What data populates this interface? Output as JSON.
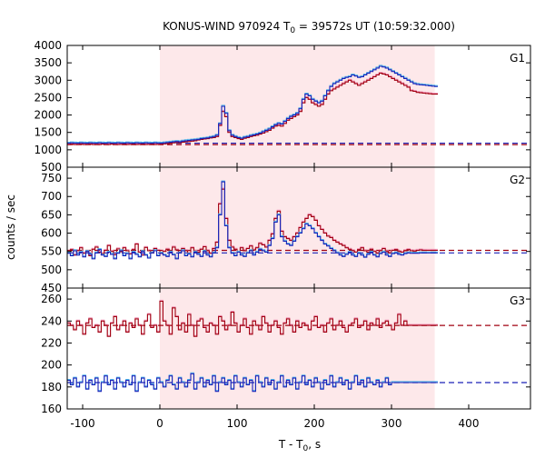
{
  "title": {
    "prefix": "KONUS-WIND 970924 T",
    "sub": "0",
    "suffix": " = 39572s UT (10:59:32.000)"
  },
  "colors": {
    "shade": "#fde8ea",
    "series_red": "#a00010",
    "series_blue": "#1a22b8",
    "series_pink": "#f08ab0",
    "series_cyan": "#40b0e8",
    "bg_red_dash": "#a00010",
    "bg_blue_dash": "#1a22b8"
  },
  "chart_data": {
    "type": "line",
    "title": "KONUS-WIND 970924 T0 = 39572s UT (10:59:32.000)",
    "xlabel": {
      "prefix": "T - T",
      "sub": "0",
      "suffix": ", s"
    },
    "ylabel": "counts / sec",
    "xlim": [
      -120,
      480
    ],
    "xticks": [
      -100,
      0,
      100,
      200,
      300,
      400
    ],
    "shaded_interval": [
      0,
      356
    ],
    "grid": false,
    "panels": [
      {
        "label": "G1",
        "ylim": [
          500,
          4000
        ],
        "yticks": [
          500,
          1000,
          1500,
          2000,
          2500,
          3000,
          3500,
          4000
        ],
        "background_levels": {
          "red": 1150,
          "blue": 1190
        },
        "series": [
          {
            "name": "",
            "color_key": "series_red",
            "step": 4,
            "x0": -120,
            "values": [
              1150,
              1160,
              1150,
              1155,
              1160,
              1150,
              1155,
              1160,
              1150,
              1155,
              1150,
              1160,
              1155,
              1150,
              1160,
              1155,
              1150,
              1155,
              1160,
              1150,
              1155,
              1160,
              1150,
              1155,
              1160,
              1150,
              1155,
              1160,
              1150,
              1155,
              1160,
              1170,
              1180,
              1190,
              1200,
              1210,
              1200,
              1220,
              1230,
              1240,
              1250,
              1260,
              1280,
              1300,
              1310,
              1320,
              1340,
              1350,
              1380,
              1700,
              2100,
              1950,
              1500,
              1380,
              1350,
              1320,
              1300,
              1330,
              1350,
              1380,
              1400,
              1420,
              1450,
              1480,
              1520,
              1560,
              1620,
              1680,
              1700,
              1680,
              1760,
              1850,
              1900,
              1950,
              2000,
              2100,
              2350,
              2500,
              2450,
              2350,
              2300,
              2250,
              2300,
              2450,
              2600,
              2700,
              2750,
              2800,
              2850,
              2900,
              2950,
              3000,
              2950,
              2900,
              2850,
              2900,
              2950,
              3000,
              3050,
              3100,
              3150,
              3200,
              3180,
              3150,
              3100,
              3050,
              3000,
              2950,
              2900,
              2850,
              2800,
              2700,
              2680,
              2650,
              2640,
              2630,
              2620,
              2610,
              2600,
              2600
            ]
          },
          {
            "name": "",
            "color_key": "series_blue",
            "step": 4,
            "x0": -120,
            "values": [
              1190,
              1200,
              1195,
              1190,
              1200,
              1195,
              1190,
              1200,
              1195,
              1190,
              1200,
              1195,
              1190,
              1200,
              1195,
              1190,
              1200,
              1195,
              1190,
              1200,
              1195,
              1190,
              1200,
              1195,
              1190,
              1200,
              1195,
              1190,
              1200,
              1195,
              1190,
              1200,
              1210,
              1220,
              1230,
              1240,
              1230,
              1250,
              1260,
              1270,
              1280,
              1290,
              1300,
              1320,
              1330,
              1340,
              1360,
              1380,
              1420,
              1750,
              2250,
              2050,
              1550,
              1420,
              1380,
              1350,
              1330,
              1360,
              1380,
              1410,
              1430,
              1450,
              1480,
              1520,
              1560,
              1600,
              1660,
              1720,
              1760,
              1740,
              1820,
              1900,
              1960,
              2000,
              2050,
              2180,
              2450,
              2600,
              2550,
              2450,
              2400,
              2350,
              2400,
              2550,
              2700,
              2820,
              2900,
              2950,
              3000,
              3050,
              3080,
              3100,
              3150,
              3120,
              3080,
              3100,
              3150,
              3200,
              3250,
              3300,
              3350,
              3400,
              3380,
              3350,
              3300,
              3250,
              3200,
              3150,
              3100,
              3050,
              3000,
              2950,
              2900,
              2880,
              2870,
              2860,
              2850,
              2840,
              2830,
              2820
            ]
          }
        ]
      },
      {
        "label": "G2",
        "ylim": [
          450,
          780
        ],
        "yticks": [
          450,
          500,
          550,
          600,
          650,
          700,
          750
        ],
        "background_levels": {
          "red": 553,
          "blue": 546
        },
        "series": [
          {
            "name": "",
            "color_key": "series_red",
            "step": 4,
            "x0": -120,
            "values": [
              548,
              555,
              540,
              552,
              560,
              545,
              550,
              538,
              556,
              562,
              548,
              544,
              553,
              566,
              550,
              541,
              557,
              549,
              560,
              552,
              543,
              555,
              570,
              548,
              540,
              561,
              552,
              546,
              558,
              553,
              545,
              550,
              556,
              548,
              562,
              554,
              547,
              558,
              552,
              545,
              560,
              550,
              548,
              556,
              563,
              552,
              545,
              558,
              575,
              680,
              720,
              640,
              580,
              562,
              556,
              548,
              560,
              552,
              558,
              565,
              554,
              560,
              572,
              568,
              562,
              580,
              598,
              640,
              660,
              605,
              590,
              585,
              580,
              590,
              600,
              615,
              630,
              640,
              650,
              645,
              635,
              620,
              610,
              600,
              592,
              588,
              580,
              575,
              570,
              566,
              560,
              556,
              552,
              548,
              555,
              560,
              552,
              548,
              556,
              550,
              545,
              552,
              558,
              550,
              546,
              553,
              555,
              550,
              548,
              552,
              555,
              552,
              550,
              553,
              554,
              553,
              553,
              553,
              553,
              553
            ]
          },
          {
            "name": "",
            "color_key": "series_blue",
            "step": 4,
            "x0": -120,
            "values": [
              545,
              538,
              552,
              540,
              548,
              535,
              550,
              542,
              530,
              546,
              555,
              540,
              536,
              548,
              542,
              530,
              545,
              552,
              538,
              544,
              530,
              548,
              542,
              535,
              550,
              540,
              532,
              546,
              552,
              538,
              545,
              540,
              536,
              548,
              541,
              530,
              546,
              552,
              538,
              543,
              535,
              548,
              542,
              536,
              550,
              540,
              535,
              546,
              560,
              650,
              740,
              620,
              560,
              545,
              538,
              548,
              540,
              536,
              546,
              552,
              540,
              548,
              556,
              552,
              548,
              566,
              585,
              630,
              650,
              590,
              578,
              570,
              566,
              578,
              590,
              600,
              612,
              625,
              620,
              612,
              600,
              590,
              580,
              570,
              565,
              558,
              552,
              546,
              540,
              536,
              542,
              548,
              540,
              536,
              545,
              540,
              534,
              542,
              548,
              540,
              535,
              544,
              548,
              540,
              536,
              544,
              546,
              542,
              540,
              544,
              546,
              545,
              545,
              545,
              546,
              546,
              546,
              546,
              546,
              546
            ]
          }
        ]
      },
      {
        "label": "G3",
        "ylim": [
          160,
          270
        ],
        "yticks": [
          160,
          180,
          200,
          220,
          240,
          260
        ],
        "background_levels": {
          "red": 236,
          "blue": 184
        },
        "series": [
          {
            "name": "",
            "color_key": "series_red",
            "step": 4,
            "x0": -120,
            "values": [
              238,
              236,
              232,
              240,
              236,
              228,
              238,
              242,
              234,
              236,
              230,
              240,
              236,
              226,
              238,
              244,
              232,
              236,
              240,
              230,
              238,
              234,
              242,
              236,
              228,
              240,
              246,
              234,
              236,
              230,
              258,
              240,
              236,
              228,
              252,
              244,
              232,
              238,
              230,
              246,
              236,
              226,
              240,
              242,
              234,
              230,
              238,
              236,
              228,
              244,
              240,
              232,
              236,
              248,
              238,
              230,
              236,
              242,
              234,
              228,
              240,
              236,
              232,
              244,
              238,
              230,
              236,
              240,
              234,
              228,
              238,
              242,
              236,
              230,
              240,
              234,
              238,
              236,
              232,
              240,
              244,
              234,
              236,
              230,
              238,
              242,
              232,
              236,
              240,
              234,
              230,
              236,
              238,
              242,
              234,
              236,
              240,
              232,
              238,
              236,
              242,
              234,
              238,
              240,
              236,
              232,
              238,
              246,
              236,
              240,
              236,
              236,
              236,
              236,
              236,
              236,
              236,
              236,
              236,
              236
            ]
          },
          {
            "name": "",
            "color_key": "series_blue",
            "step": 4,
            "x0": -120,
            "values": [
              186,
              182,
              188,
              180,
              184,
              190,
              178,
              186,
              182,
              188,
              176,
              184,
              190,
              182,
              186,
              178,
              188,
              184,
              180,
              186,
              182,
              190,
              176,
              184,
              188,
              180,
              186,
              182,
              178,
              188,
              184,
              180,
              186,
              190,
              182,
              178,
              188,
              184,
              180,
              186,
              192,
              178,
              184,
              188,
              180,
              186,
              182,
              190,
              176,
              184,
              188,
              182,
              186,
              178,
              190,
              184,
              180,
              188,
              182,
              186,
              176,
              190,
              184,
              180,
              188,
              182,
              186,
              178,
              184,
              190,
              180,
              186,
              182,
              188,
              178,
              184,
              190,
              182,
              186,
              180,
              188,
              184,
              178,
              186,
              182,
              190,
              180,
              184,
              188,
              182,
              186,
              178,
              184,
              190,
              182,
              186,
              180,
              188,
              184,
              182,
              186,
              180,
              184,
              188,
              182,
              184,
              184,
              184,
              184,
              184,
              184,
              184,
              184,
              184,
              184,
              184,
              184,
              184,
              184,
              184
            ]
          }
        ]
      }
    ]
  }
}
